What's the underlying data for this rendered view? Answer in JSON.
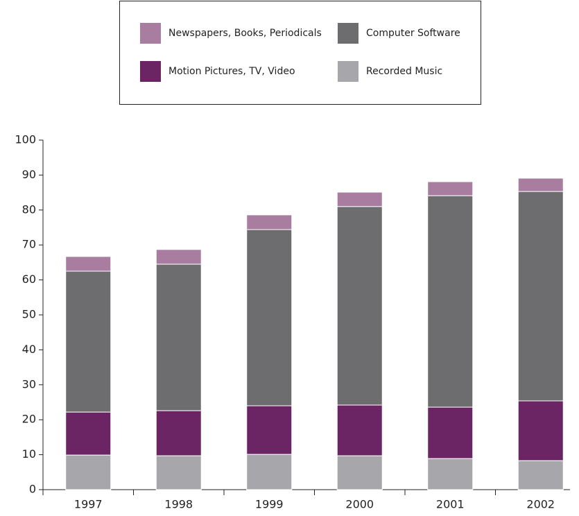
{
  "chart_data": {
    "type": "stacked_bar",
    "categories": [
      "1997",
      "1998",
      "1999",
      "2000",
      "2001",
      "2002"
    ],
    "series": [
      {
        "name": "Recorded Music",
        "color": "#a7a7ab",
        "values": [
          9.9,
          9.7,
          10.1,
          9.7,
          8.9,
          8.3
        ]
      },
      {
        "name": "Motion Pictures, TV, Video",
        "color": "#6b2464",
        "values": [
          12.3,
          12.9,
          13.9,
          14.5,
          14.7,
          17.1
        ]
      },
      {
        "name": "Computer Software",
        "color": "#6d6d6f",
        "values": [
          40.3,
          41.9,
          50.4,
          56.8,
          60.5,
          59.9
        ]
      },
      {
        "name": "Newspapers, Books, Periodicals",
        "color": "#a87d9f",
        "values": [
          4.2,
          4.2,
          4.2,
          4.1,
          4.0,
          3.8
        ]
      }
    ],
    "ylim": [
      0,
      100
    ],
    "yticks": [
      0,
      10,
      20,
      30,
      40,
      50,
      60,
      70,
      80,
      90,
      100
    ],
    "grid": false,
    "legend": "top"
  }
}
